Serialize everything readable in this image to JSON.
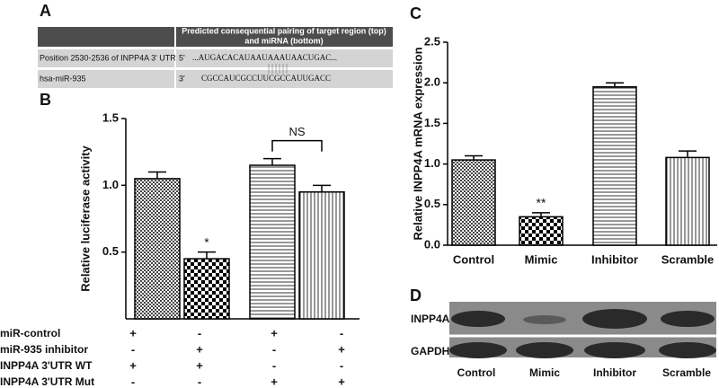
{
  "panel_a": {
    "label": "A",
    "header_lines": [
      "Predicted consequential pairing of target region (top)",
      "and miRNA (bottom)"
    ],
    "rows": [
      {
        "name": "Position 2530-2536 of INPP4A 3' UTR",
        "end": "5'",
        "sequence": "...AUGACACAUAAUAAAUAACUGAC..."
      },
      {
        "name": "hsa-miR-935",
        "end": "3'",
        "sequence": "CGCCAUCGCCUUCGCCAUUGACC"
      }
    ]
  },
  "chart_data": [
    {
      "type": "bar",
      "panel": "B",
      "y_label": "Relative luciferase activity",
      "categories": [
        null,
        null,
        null,
        null
      ],
      "values": [
        1.05,
        0.45,
        1.15,
        0.95
      ],
      "errors": [
        0.05,
        0.05,
        0.05,
        0.05
      ],
      "patterns": [
        "fine-checker",
        "checker",
        "horizontal-lines",
        "vertical-lines"
      ],
      "ylim": [
        0,
        1.5
      ],
      "yticks": [
        0.5,
        {
          "value": 1,
          "label": "1.0"
        },
        1.5
      ],
      "annotations": [
        {
          "text": "*",
          "index": 1
        },
        {
          "text": "NS",
          "from": 2,
          "to": 3
        }
      ],
      "conditions": [
        {
          "label": "miR-control",
          "signs": [
            "+",
            "-",
            "+",
            "-"
          ]
        },
        {
          "label": "miR-935 inhibitor",
          "signs": [
            "-",
            "+",
            "-",
            "+"
          ]
        },
        {
          "label": "INPP4A 3'UTR WT",
          "signs": [
            "+",
            "+",
            "-",
            "-"
          ]
        },
        {
          "label": "INPP4A 3'UTR Mut",
          "signs": [
            "-",
            "-",
            "+",
            "+"
          ]
        }
      ]
    },
    {
      "type": "bar",
      "panel": "C",
      "y_label": "Relative INPP4A mRNA expression",
      "categories": [
        "Control",
        "Mimic",
        "Inhibitor",
        "Scramble"
      ],
      "values": [
        1.05,
        0.35,
        1.95,
        1.08
      ],
      "errors": [
        0.05,
        0.05,
        0.05,
        0.08
      ],
      "patterns": [
        "fine-checker",
        "checker",
        "horizontal-lines",
        "vertical-lines"
      ],
      "ylim": [
        0,
        2.5
      ],
      "yticks": [
        {
          "value": 0,
          "label": "0.0"
        },
        0.5,
        {
          "value": 1,
          "label": "1.0"
        },
        1.5,
        {
          "value": 2,
          "label": "2.0"
        },
        2.5
      ],
      "annotations": [
        {
          "text": "**",
          "index": 1
        }
      ]
    }
  ],
  "panel_d": {
    "label": "D",
    "rows": [
      "INPP4A",
      "GAPDH"
    ],
    "lanes": [
      "Control",
      "Mimic",
      "Inhibitor",
      "Scramble"
    ]
  }
}
